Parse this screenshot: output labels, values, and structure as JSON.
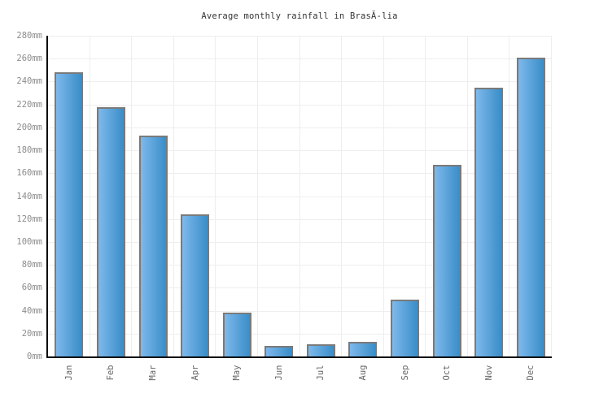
{
  "chart_data": {
    "type": "bar",
    "title": "Average monthly rainfall in BrasĂ-lia",
    "unit": "mm",
    "categories": [
      "Jan",
      "Feb",
      "Mar",
      "Apr",
      "May",
      "Jun",
      "Jul",
      "Aug",
      "Sep",
      "Oct",
      "Nov",
      "Dec"
    ],
    "values": [
      248,
      218,
      193,
      124,
      38,
      9,
      11,
      13,
      50,
      167,
      235,
      261
    ],
    "ylim": [
      0,
      280
    ],
    "ytick_step": 20,
    "ytick_labels": [
      "0mm",
      "20mm",
      "40mm",
      "60mm",
      "80mm",
      "100mm",
      "120mm",
      "140mm",
      "160mm",
      "180mm",
      "200mm",
      "220mm",
      "240mm",
      "260mm",
      "280mm"
    ],
    "xlabel": "",
    "ylabel": "",
    "grid": "on",
    "legend": "none",
    "x_label_rotation_deg": -90,
    "colors": {
      "bar_gradient_left": "#7db9ec",
      "bar_gradient_right": "#3a8dc8",
      "bar_border": "#7a7a7a",
      "axis": "#000000",
      "gridline": "#eeeeee",
      "y_tick_label": "#8c8c8c",
      "x_tick_label": "#666666",
      "title": "#333333",
      "background": "#ffffff"
    }
  }
}
